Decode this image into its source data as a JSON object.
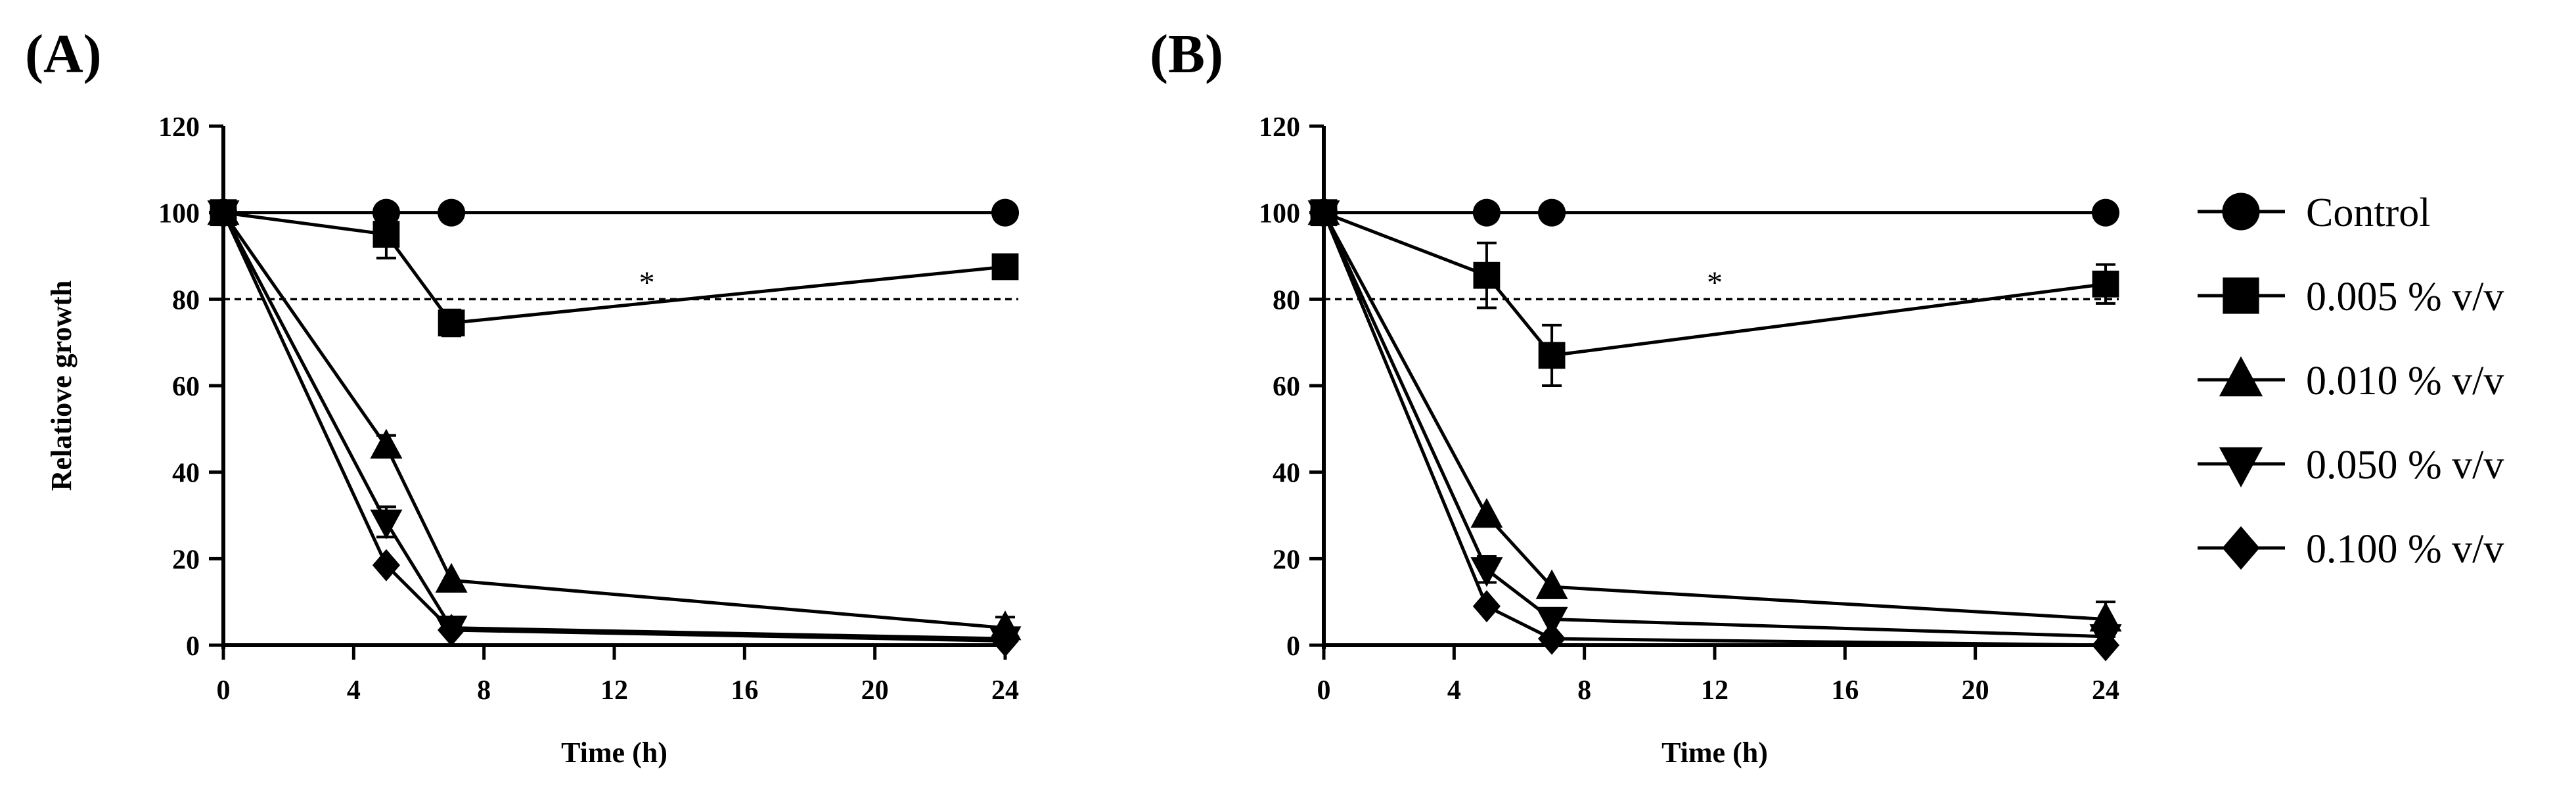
{
  "chart_data": [
    {
      "type": "line",
      "panel_label": "(A)",
      "xlabel": "Time (h)",
      "ylabel": "Relatiove growth",
      "xlim": [
        0,
        24
      ],
      "ylim": [
        0,
        120
      ],
      "xticks": [
        "0",
        "4",
        "8",
        "12",
        "16",
        "20",
        "24"
      ],
      "yticks": [
        "0",
        "20",
        "40",
        "60",
        "80",
        "100",
        "120"
      ],
      "threshold": 80,
      "annotation": "*",
      "annotation_at": {
        "x": 13,
        "y": 86
      },
      "series": [
        {
          "name": "Control",
          "marker": "circle",
          "x": [
            0,
            5,
            7,
            24
          ],
          "y": [
            100,
            100,
            100,
            100
          ],
          "err": [
            0,
            0,
            0,
            0
          ]
        },
        {
          "name": "0.005 % v/v",
          "marker": "square",
          "x": [
            0,
            5,
            7,
            24
          ],
          "y": [
            100,
            95,
            74.5,
            87.5
          ],
          "err": [
            0,
            5.5,
            3,
            1
          ]
        },
        {
          "name": "0.010 % v/v",
          "marker": "triangle-up",
          "x": [
            0,
            5,
            7,
            24
          ],
          "y": [
            100,
            46,
            15,
            4
          ],
          "err": [
            0,
            2.5,
            0,
            2.5
          ]
        },
        {
          "name": "0.050 % v/v",
          "marker": "triangle-down",
          "x": [
            0,
            5,
            7,
            24
          ],
          "y": [
            100,
            28.5,
            4,
            1.5
          ],
          "err": [
            0,
            3.5,
            0,
            0.5
          ]
        },
        {
          "name": "0.100 % v/v",
          "marker": "diamond",
          "x": [
            0,
            5,
            7,
            24
          ],
          "y": [
            100,
            18.5,
            3.5,
            1
          ],
          "err": [
            0,
            0,
            0,
            0
          ]
        }
      ]
    },
    {
      "type": "line",
      "panel_label": "(B)",
      "xlabel": "Time (h)",
      "ylabel": "",
      "xlim": [
        0,
        24
      ],
      "ylim": [
        0,
        120
      ],
      "xticks": [
        "0",
        "4",
        "8",
        "12",
        "16",
        "20",
        "24"
      ],
      "yticks": [
        "0",
        "20",
        "40",
        "60",
        "80",
        "100",
        "120"
      ],
      "threshold": 80,
      "annotation": "*",
      "annotation_at": {
        "x": 12,
        "y": 86
      },
      "series": [
        {
          "name": "Control",
          "marker": "circle",
          "x": [
            0,
            5,
            7,
            24
          ],
          "y": [
            100,
            100,
            100,
            100
          ],
          "err": [
            0,
            0,
            0,
            0
          ]
        },
        {
          "name": "0.005 % v/v",
          "marker": "square",
          "x": [
            0,
            5,
            7,
            24
          ],
          "y": [
            100,
            85.5,
            67,
            83.5
          ],
          "err": [
            0,
            7.5,
            7,
            4.5
          ]
        },
        {
          "name": "0.010 % v/v",
          "marker": "triangle-up",
          "x": [
            0,
            5,
            7,
            24
          ],
          "y": [
            100,
            30,
            13.5,
            6
          ],
          "err": [
            0,
            0,
            0,
            4
          ]
        },
        {
          "name": "0.050 % v/v",
          "marker": "triangle-down",
          "x": [
            0,
            5,
            7,
            24
          ],
          "y": [
            100,
            17.5,
            6,
            2
          ],
          "err": [
            0,
            3,
            0,
            0
          ]
        },
        {
          "name": "0.100 % v/v",
          "marker": "diamond",
          "x": [
            0,
            5,
            7,
            24
          ],
          "y": [
            100,
            9,
            1.5,
            0
          ],
          "err": [
            0,
            0,
            0,
            0
          ]
        }
      ]
    }
  ],
  "legend": [
    {
      "label": "Control",
      "marker": "circle"
    },
    {
      "label": "0.005 % v/v",
      "marker": "square"
    },
    {
      "label": "0.010 % v/v",
      "marker": "triangle-up"
    },
    {
      "label": "0.050 % v/v",
      "marker": "triangle-down"
    },
    {
      "label": "0.100 % v/v",
      "marker": "diamond"
    }
  ]
}
